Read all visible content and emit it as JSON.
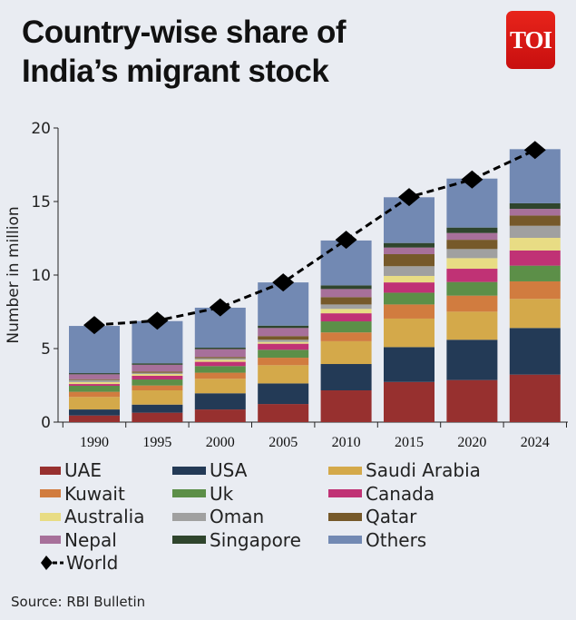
{
  "chart_data": {
    "type": "bar",
    "stacked": true,
    "title": "Country-wise share of India’s migrant stock",
    "ylabel": "Number in million",
    "xlabel": "",
    "ylim": [
      0,
      20
    ],
    "yticks": [
      0,
      5,
      10,
      15,
      20
    ],
    "grid": false,
    "legend_placement": "bottom",
    "categories": [
      "1990",
      "1995",
      "2000",
      "2005",
      "2010",
      "2015",
      "2020",
      "2024"
    ],
    "series": [
      {
        "name": "UAE",
        "color": "#97302f",
        "values": [
          0.45,
          0.64,
          0.86,
          1.23,
          2.16,
          2.73,
          2.86,
          3.23
        ]
      },
      {
        "name": "USA",
        "color": "#233a56",
        "values": [
          0.41,
          0.55,
          1.1,
          1.4,
          1.79,
          2.37,
          2.74,
          3.17
        ]
      },
      {
        "name": "Saudi Arabia",
        "color": "#d4a94a",
        "values": [
          0.85,
          0.97,
          0.99,
          1.24,
          1.55,
          1.94,
          1.91,
          1.98
        ]
      },
      {
        "name": "Kuwait",
        "color": "#d17c3f",
        "values": [
          0.35,
          0.33,
          0.41,
          0.51,
          0.6,
          0.96,
          1.09,
          1.19
        ]
      },
      {
        "name": "Uk",
        "color": "#5c8f48",
        "values": [
          0.41,
          0.41,
          0.45,
          0.54,
          0.75,
          0.8,
          0.93,
          1.07
        ]
      },
      {
        "name": "Canada",
        "color": "#c03275",
        "values": [
          0.12,
          0.25,
          0.29,
          0.41,
          0.55,
          0.7,
          0.9,
          1.03
        ]
      },
      {
        "name": "Australia",
        "color": "#e8dc84",
        "values": [
          0.13,
          0.12,
          0.14,
          0.12,
          0.3,
          0.44,
          0.72,
          0.86
        ]
      },
      {
        "name": "Oman",
        "color": "#a0a0a0",
        "values": [
          0.14,
          0.08,
          0.1,
          0.15,
          0.3,
          0.66,
          0.62,
          0.82
        ]
      },
      {
        "name": "Qatar",
        "color": "#76592a",
        "values": [
          0.06,
          0.09,
          0.09,
          0.25,
          0.5,
          0.82,
          0.63,
          0.7
        ]
      },
      {
        "name": "Nepal",
        "color": "#a7709a",
        "values": [
          0.33,
          0.46,
          0.53,
          0.55,
          0.55,
          0.45,
          0.46,
          0.45
        ]
      },
      {
        "name": "Singapore",
        "color": "#2f452d",
        "values": [
          0.08,
          0.1,
          0.1,
          0.16,
          0.25,
          0.31,
          0.37,
          0.38
        ]
      },
      {
        "name": "Others",
        "color": "#7289b3",
        "values": [
          3.21,
          2.87,
          2.72,
          2.94,
          3.05,
          3.11,
          3.33,
          3.68
        ]
      }
    ],
    "line": {
      "name": "World",
      "color": "#000000",
      "values": [
        6.6,
        6.9,
        7.8,
        9.5,
        12.4,
        15.3,
        16.5,
        18.5
      ]
    }
  },
  "header": {
    "title_line1": "Country-wise share of",
    "title_line2": "India’s migrant stock",
    "logo_text": "TOI"
  },
  "footer": {
    "source": "Source: RBI Bulletin"
  }
}
